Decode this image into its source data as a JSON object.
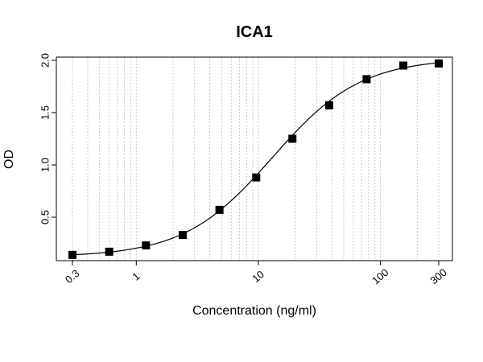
{
  "chart_data": {
    "type": "scatter",
    "title": "ICA1",
    "xlabel": "Concentration (ng/ml)",
    "ylabel": "OD",
    "x_scale": "log",
    "xlim": [
      0.3,
      300
    ],
    "ylim": [
      0.15,
      2.0
    ],
    "x_ticks": [
      0.3,
      1,
      10,
      100,
      300
    ],
    "x_tick_labels": [
      "0.3",
      "1",
      "10",
      "100",
      "300"
    ],
    "y_ticks": [
      0.5,
      1.0,
      1.5,
      2.0
    ],
    "y_tick_labels": [
      "0.5",
      "1.0",
      "1.5",
      "2.0"
    ],
    "grid": "vertical-dotted-log",
    "legend": "none",
    "series": [
      {
        "marker": "square",
        "color": "#000000",
        "fit_line": "4PL sigmoid curve",
        "x": [
          0.3,
          0.6,
          1.2,
          2.4,
          4.8,
          9.6,
          19,
          38,
          77,
          154,
          300
        ],
        "y": [
          0.14,
          0.17,
          0.23,
          0.33,
          0.57,
          0.88,
          1.25,
          1.57,
          1.82,
          1.95,
          1.97
        ]
      }
    ]
  }
}
